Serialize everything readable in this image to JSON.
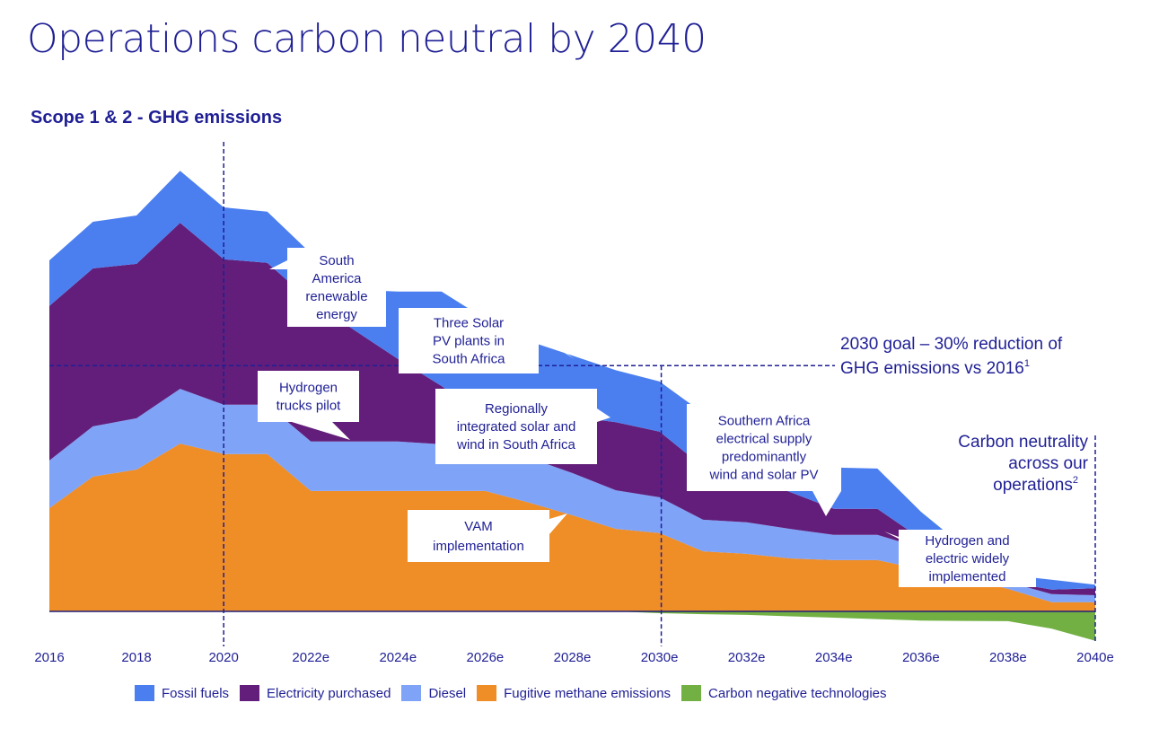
{
  "header": {
    "title": "Operations carbon neutral by 2040",
    "subtitle": "Scope 1 & 2 - GHG emissions"
  },
  "chart_data": {
    "type": "area",
    "stacked": true,
    "title": "Scope 1 & 2 - GHG emissions",
    "xlabel": "",
    "ylabel": "",
    "y_units": "relative index (2016 total = 100), estimated from shape; no y-axis shown",
    "x": [
      2016,
      2017,
      2018,
      2019,
      2020,
      2021,
      2022,
      2023,
      2024,
      2025,
      2026,
      2027,
      2028,
      2029,
      2030,
      2031,
      2032,
      2033,
      2034,
      2035,
      2036,
      2037,
      2038,
      2039,
      2040
    ],
    "tick_labels": [
      "2016",
      "2018",
      "2020",
      "2022e",
      "2024e",
      "2026e",
      "2028e",
      "2030e",
      "2032e",
      "2034e",
      "2036e",
      "2038e",
      "2040e"
    ],
    "tick_years": [
      2016,
      2018,
      2020,
      2022,
      2024,
      2026,
      2028,
      2030,
      2032,
      2034,
      2036,
      2038,
      2040
    ],
    "ylim": [
      -10,
      125
    ],
    "grid": false,
    "legend_position": "bottom",
    "series": [
      {
        "name": "Fugitive methane emissions",
        "color": "#ef8d26",
        "values": [
          29.4,
          38.4,
          40.4,
          47.8,
          44.8,
          44.8,
          34.3,
          34.3,
          34.3,
          34.3,
          34.3,
          31.0,
          27.4,
          23.5,
          22.3,
          17.1,
          16.4,
          15.1,
          14.6,
          14.6,
          12.0,
          9.5,
          6.4,
          2.6,
          2.6
        ]
      },
      {
        "name": "Diesel",
        "color": "#7fa3f7",
        "values": [
          13.6,
          14.3,
          14.6,
          15.6,
          14.1,
          14.1,
          14.1,
          14.1,
          14.1,
          13.3,
          13.0,
          12.8,
          12.0,
          11.0,
          10.2,
          9.0,
          9.0,
          8.4,
          7.2,
          7.2,
          6.1,
          4.9,
          2.0,
          2.3,
          2.0
        ]
      },
      {
        "name": "Electricity purchased",
        "color": "#621e7a",
        "values": [
          44.0,
          45.0,
          44.0,
          47.3,
          41.4,
          40.4,
          40.0,
          31.7,
          23.5,
          16.6,
          7.9,
          12.3,
          16.1,
          19.4,
          18.7,
          15.1,
          13.3,
          10.5,
          7.4,
          7.4,
          2.6,
          0,
          0,
          1.3,
          2.0
        ]
      },
      {
        "name": "Fossil fuels",
        "color": "#4b7ff0",
        "values": [
          13.0,
          13.3,
          13.8,
          14.8,
          14.8,
          14.6,
          13.6,
          11.5,
          19.2,
          26.9,
          28.1,
          20.9,
          17.4,
          14.8,
          14.3,
          15.3,
          14.1,
          13.6,
          11.8,
          11.5,
          7.7,
          3.8,
          2.0,
          2.8,
          1.0
        ]
      },
      {
        "name": "Carbon negative technologies",
        "color": "#72b043",
        "negative": true,
        "values": [
          0,
          0,
          0,
          0,
          0,
          0,
          0,
          0,
          0,
          0,
          0,
          0,
          0,
          0,
          -0.5,
          -0.8,
          -1.0,
          -1.4,
          -1.8,
          -2.2,
          -2.6,
          -2.7,
          -2.8,
          -4.9,
          -8.4
        ]
      }
    ],
    "reference_lines": [
      {
        "type": "horizontal",
        "label": "2030 goal – 30% reduction of GHG emissions vs 2016",
        "footnote": "1",
        "value": 70
      },
      {
        "type": "vertical",
        "x": 2020
      },
      {
        "type": "vertical",
        "x": 2030
      },
      {
        "type": "vertical",
        "x": 2040,
        "label": "Carbon neutrality across our operations",
        "footnote": "2"
      }
    ],
    "annotations": [
      {
        "text": "South America renewable energy",
        "lines": [
          "South",
          "America",
          "renewable",
          "energy"
        ]
      },
      {
        "text": "Three Solar PV plants in South Africa",
        "lines": [
          "Three Solar",
          "PV plants in",
          "South Africa"
        ]
      },
      {
        "text": "Hydrogen trucks pilot",
        "lines": [
          "Hydrogen",
          "trucks pilot"
        ]
      },
      {
        "text": "Regionally integrated solar and wind in South Africa",
        "lines": [
          "Regionally",
          "integrated solar and",
          "wind in South Africa"
        ]
      },
      {
        "text": "VAM implementation",
        "lines": [
          "VAM",
          "implementation"
        ]
      },
      {
        "text": "Southern Africa electrical supply predominantly wind and solar PV",
        "lines": [
          "Southern Africa",
          "electrical supply",
          "predominantly",
          "wind and solar PV"
        ]
      },
      {
        "text": "Hydrogen and electric widely implemented",
        "lines": [
          "Hydrogen and",
          "electric widely",
          "implemented"
        ]
      }
    ],
    "goal_label_lines": [
      "2030 goal – 30% reduction of",
      "GHG emissions vs 2016"
    ],
    "neutral_label_lines": [
      "Carbon neutrality",
      "across our",
      "operations"
    ]
  },
  "legend": [
    {
      "label": "Fossil fuels",
      "color": "#4b7ff0"
    },
    {
      "label": "Electricity purchased",
      "color": "#621e7a"
    },
    {
      "label": "Diesel",
      "color": "#7fa3f7"
    },
    {
      "label": "Fugitive methane emissions",
      "color": "#ef8d26"
    },
    {
      "label": "Carbon negative technologies",
      "color": "#72b043"
    }
  ]
}
